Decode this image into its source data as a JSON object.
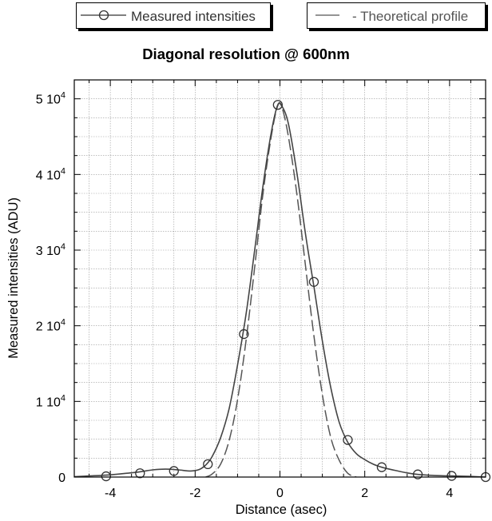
{
  "legend": {
    "measured_label": "Measured intensities",
    "theoretical_label": "- Theoretical profile"
  },
  "chart_data": {
    "type": "line",
    "title": "Diagonal resolution @ 600nm",
    "xlabel": "Distance (asec)",
    "ylabel": "Measured intensities (ADU)",
    "xlim": [
      -4.85,
      4.85
    ],
    "ylim": [
      0,
      52500
    ],
    "grid": true,
    "legend_position": "top",
    "x_ticks": [
      {
        "value": -4,
        "label": "-4"
      },
      {
        "value": -2,
        "label": "-2"
      },
      {
        "value": 0,
        "label": "0"
      },
      {
        "value": 2,
        "label": "2"
      },
      {
        "value": 4,
        "label": "4"
      }
    ],
    "y_ticks": [
      {
        "value": 0,
        "mant": "0",
        "exp": ""
      },
      {
        "value": 10000,
        "mant": "1 10",
        "exp": "4"
      },
      {
        "value": 20000,
        "mant": "2 10",
        "exp": "4"
      },
      {
        "value": 30000,
        "mant": "3 10",
        "exp": "4"
      },
      {
        "value": 40000,
        "mant": "4 10",
        "exp": "4"
      },
      {
        "value": 50000,
        "mant": "5 10",
        "exp": "4"
      }
    ],
    "series": [
      {
        "name": "Measured intensities",
        "style": "solid-with-circles",
        "color": "#444444",
        "points": [
          {
            "x": -4.1,
            "y": 100
          },
          {
            "x": -3.3,
            "y": 500
          },
          {
            "x": -2.5,
            "y": 800
          },
          {
            "x": -1.7,
            "y": 1700
          },
          {
            "x": -0.85,
            "y": 18900
          },
          {
            "x": -0.05,
            "y": 49200
          },
          {
            "x": 0.8,
            "y": 25800
          },
          {
            "x": 1.6,
            "y": 4900
          },
          {
            "x": 2.4,
            "y": 1300
          },
          {
            "x": 3.25,
            "y": 350
          },
          {
            "x": 4.05,
            "y": 150
          },
          {
            "x": 4.85,
            "y": 0
          }
        ],
        "curve": [
          [
            -4.85,
            50
          ],
          [
            -4.5,
            150
          ],
          [
            -4.1,
            250
          ],
          [
            -3.7,
            450
          ],
          [
            -3.3,
            700
          ],
          [
            -3.0,
            950
          ],
          [
            -2.7,
            1050
          ],
          [
            -2.4,
            950
          ],
          [
            -2.1,
            800
          ],
          [
            -1.9,
            1000
          ],
          [
            -1.75,
            1600
          ],
          [
            -1.6,
            2700
          ],
          [
            -1.4,
            5200
          ],
          [
            -1.2,
            9000
          ],
          [
            -1.0,
            14800
          ],
          [
            -0.8,
            21500
          ],
          [
            -0.6,
            29800
          ],
          [
            -0.4,
            38500
          ],
          [
            -0.2,
            45700
          ],
          [
            -0.05,
            49200
          ],
          [
            0.05,
            49000
          ],
          [
            0.2,
            46700
          ],
          [
            0.4,
            40200
          ],
          [
            0.6,
            32200
          ],
          [
            0.8,
            25200
          ],
          [
            1.0,
            18000
          ],
          [
            1.2,
            11800
          ],
          [
            1.4,
            7200
          ],
          [
            1.6,
            4600
          ],
          [
            1.8,
            3100
          ],
          [
            2.0,
            2300
          ],
          [
            2.2,
            1700
          ],
          [
            2.4,
            1300
          ],
          [
            2.7,
            900
          ],
          [
            3.0,
            550
          ],
          [
            3.25,
            350
          ],
          [
            3.6,
            220
          ],
          [
            4.05,
            150
          ],
          [
            4.5,
            80
          ],
          [
            4.85,
            0
          ]
        ]
      },
      {
        "name": "- Theoretical profile",
        "style": "dashed",
        "color": "#555555",
        "curve": [
          [
            -1.75,
            0
          ],
          [
            -1.6,
            400
          ],
          [
            -1.4,
            1700
          ],
          [
            -1.2,
            4800
          ],
          [
            -1.0,
            10200
          ],
          [
            -0.8,
            18000
          ],
          [
            -0.6,
            27500
          ],
          [
            -0.4,
            37500
          ],
          [
            -0.2,
            45200
          ],
          [
            -0.05,
            49100
          ],
          [
            0.05,
            48800
          ],
          [
            0.2,
            45000
          ],
          [
            0.4,
            37400
          ],
          [
            0.6,
            28000
          ],
          [
            0.8,
            18700
          ],
          [
            1.0,
            10900
          ],
          [
            1.2,
            5200
          ],
          [
            1.4,
            2200
          ],
          [
            1.6,
            500
          ],
          [
            1.8,
            0
          ]
        ]
      }
    ]
  }
}
